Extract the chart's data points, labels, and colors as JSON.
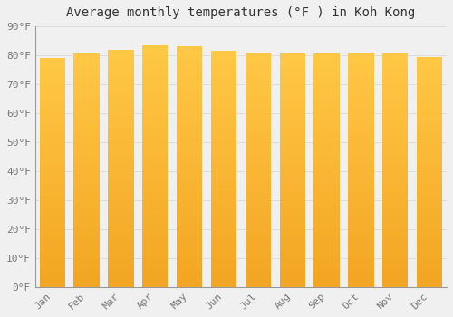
{
  "title": "Average monthly temperatures (°F ) in Koh Kong",
  "months": [
    "Jan",
    "Feb",
    "Mar",
    "Apr",
    "May",
    "Jun",
    "Jul",
    "Aug",
    "Sep",
    "Oct",
    "Nov",
    "Dec"
  ],
  "values": [
    79,
    80.5,
    82,
    83.5,
    83,
    81.5,
    81,
    80.5,
    80.5,
    81,
    80.5,
    79.5
  ],
  "bar_color_main": "#F5A623",
  "bar_color_light": "#FFC845",
  "bar_color_dark": "#E8940A",
  "bg_color": "#F0F0F0",
  "ylim": [
    0,
    90
  ],
  "yticks": [
    0,
    10,
    20,
    30,
    40,
    50,
    60,
    70,
    80,
    90
  ],
  "title_fontsize": 10,
  "tick_fontsize": 8,
  "grid_color": "#DDDDDD"
}
